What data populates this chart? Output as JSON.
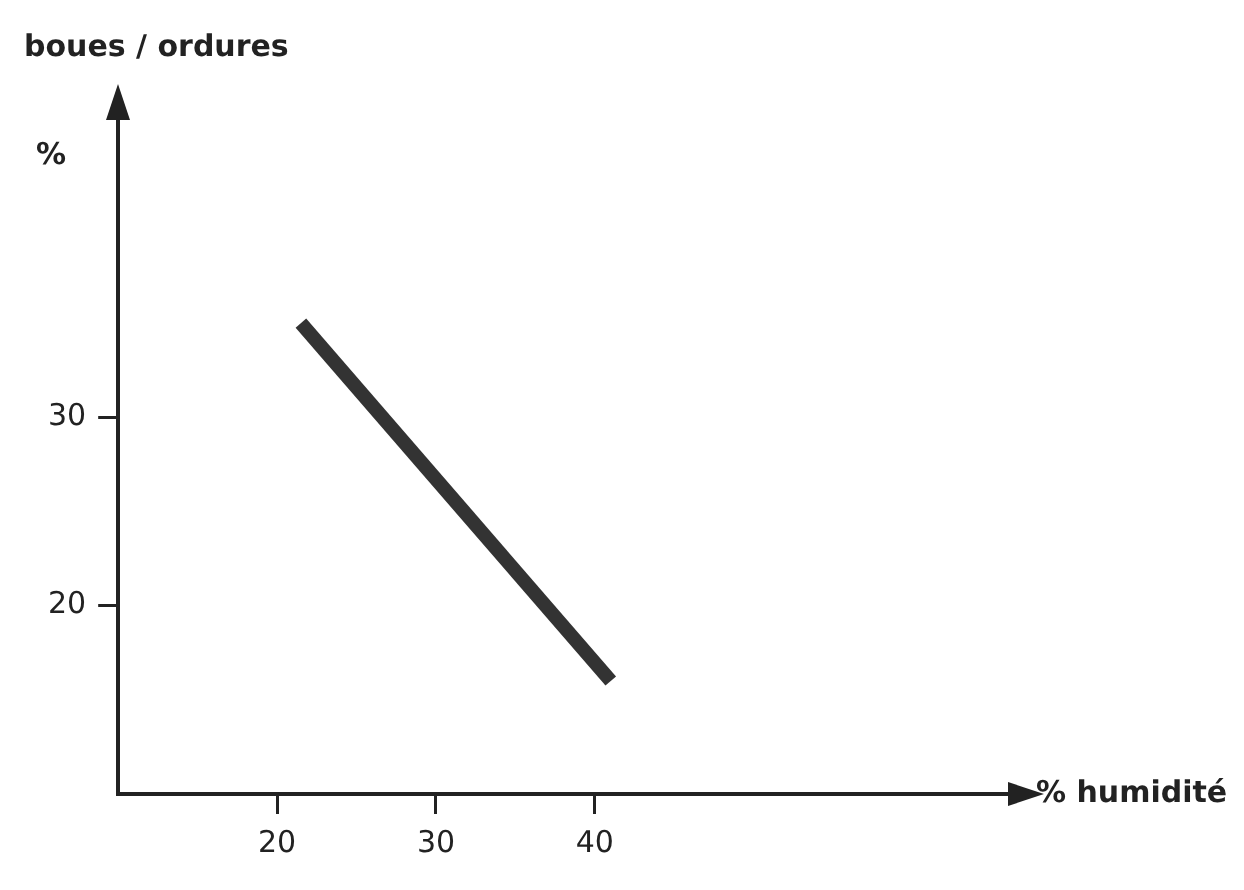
{
  "chart_data": {
    "type": "line",
    "title": "boues / ordures",
    "ylabel": "%",
    "xlabel": "% humidité",
    "x": [
      21.5,
      41
    ],
    "series": [
      {
        "color": "#333333",
        "values": [
          35,
          16
        ]
      }
    ],
    "xlim": [
      10,
      66
    ],
    "ylim": [
      10,
      46
    ],
    "xticks": [
      20,
      30,
      40
    ],
    "yticks": [
      20,
      30
    ],
    "marker": "none",
    "line_style": "solid"
  }
}
